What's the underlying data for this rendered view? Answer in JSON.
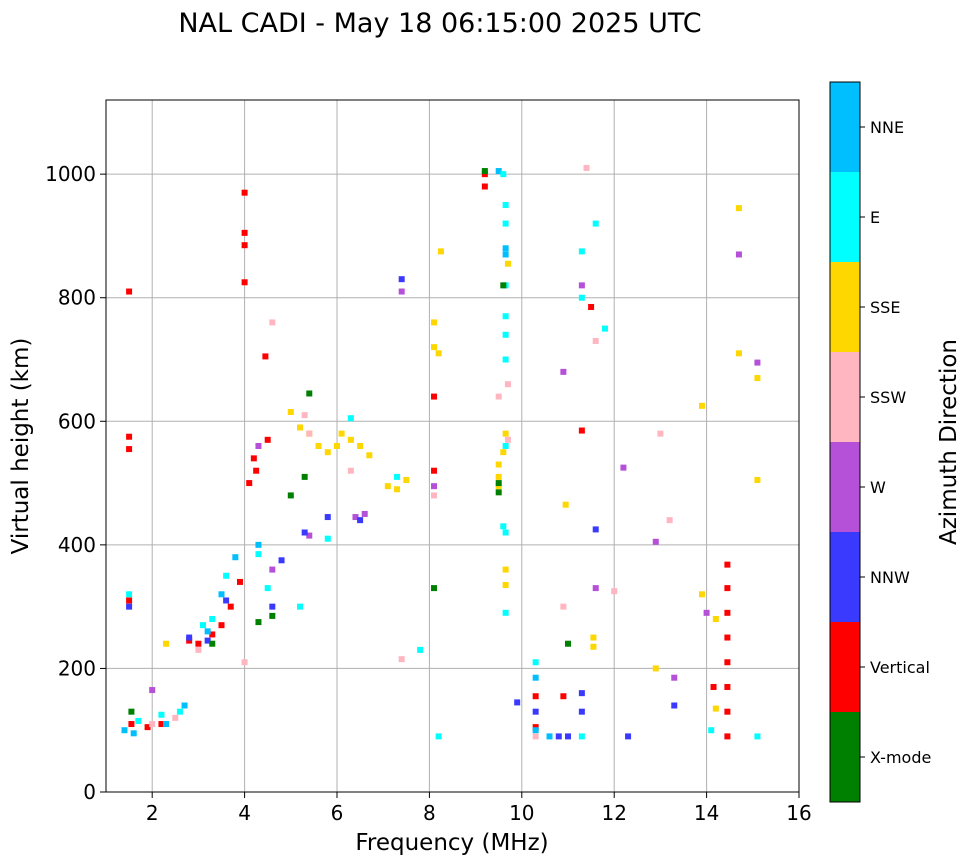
{
  "chart_data": {
    "type": "scatter",
    "title": "NAL CADI - May 18 06:15:00 2025 UTC",
    "xlabel": "Frequency (MHz)",
    "ylabel": "Virtual height (km)",
    "xlim": [
      1,
      16
    ],
    "ylim": [
      0,
      1120
    ],
    "xticks": [
      2,
      4,
      6,
      8,
      10,
      12,
      14,
      16
    ],
    "yticks": [
      0,
      200,
      400,
      600,
      800,
      1000
    ],
    "grid": true,
    "colorbar": {
      "label": "Azimuth Direction",
      "categories": [
        {
          "name": "X-mode",
          "color": "#008000"
        },
        {
          "name": "Vertical",
          "color": "#ff0000"
        },
        {
          "name": "NNW",
          "color": "#3a3aff"
        },
        {
          "name": "W",
          "color": "#b550d8"
        },
        {
          "name": "SSW",
          "color": "#ffb6c1"
        },
        {
          "name": "SSE",
          "color": "#ffd700"
        },
        {
          "name": "E",
          "color": "#00ffff"
        },
        {
          "name": "NNE",
          "color": "#00bfff"
        }
      ]
    },
    "series": [
      {
        "name": "Vertical",
        "points": [
          [
            1.5,
            810
          ],
          [
            1.5,
            575
          ],
          [
            1.5,
            555
          ],
          [
            1.5,
            310
          ],
          [
            1.55,
            110
          ],
          [
            1.9,
            105
          ],
          [
            2.2,
            110
          ],
          [
            2.8,
            245
          ],
          [
            3.0,
            240
          ],
          [
            3.3,
            255
          ],
          [
            3.5,
            270
          ],
          [
            3.7,
            300
          ],
          [
            3.9,
            340
          ],
          [
            4.0,
            970
          ],
          [
            4.0,
            905
          ],
          [
            4.0,
            885
          ],
          [
            4.0,
            825
          ],
          [
            4.1,
            500
          ],
          [
            4.2,
            540
          ],
          [
            4.25,
            520
          ],
          [
            4.45,
            705
          ],
          [
            4.5,
            570
          ],
          [
            8.1,
            640
          ],
          [
            8.1,
            520
          ],
          [
            9.2,
            1000
          ],
          [
            9.2,
            980
          ],
          [
            10.3,
            155
          ],
          [
            10.3,
            105
          ],
          [
            10.9,
            155
          ],
          [
            11.3,
            585
          ],
          [
            11.5,
            785
          ],
          [
            14.15,
            170
          ],
          [
            14.45,
            90
          ],
          [
            14.45,
            130
          ],
          [
            14.45,
            170
          ],
          [
            14.45,
            210
          ],
          [
            14.45,
            250
          ],
          [
            14.45,
            290
          ],
          [
            14.45,
            330
          ],
          [
            14.45,
            368
          ]
        ]
      },
      {
        "name": "NNE",
        "points": [
          [
            1.4,
            100
          ],
          [
            1.6,
            95
          ],
          [
            2.3,
            110
          ],
          [
            2.7,
            140
          ],
          [
            3.2,
            260
          ],
          [
            3.5,
            320
          ],
          [
            3.8,
            380
          ],
          [
            4.3,
            400
          ],
          [
            9.5,
            1005
          ],
          [
            9.65,
            880
          ],
          [
            9.65,
            870
          ],
          [
            10.3,
            185
          ],
          [
            10.3,
            100
          ],
          [
            10.6,
            90
          ]
        ]
      },
      {
        "name": "E",
        "points": [
          [
            1.5,
            320
          ],
          [
            1.7,
            115
          ],
          [
            2.2,
            125
          ],
          [
            2.6,
            130
          ],
          [
            3.1,
            270
          ],
          [
            3.3,
            280
          ],
          [
            3.6,
            350
          ],
          [
            4.3,
            385
          ],
          [
            4.5,
            330
          ],
          [
            5.2,
            300
          ],
          [
            5.8,
            410
          ],
          [
            6.3,
            605
          ],
          [
            7.3,
            510
          ],
          [
            7.8,
            230
          ],
          [
            8.2,
            90
          ],
          [
            9.6,
            1000
          ],
          [
            9.65,
            950
          ],
          [
            9.65,
            920
          ],
          [
            9.65,
            820
          ],
          [
            9.65,
            770
          ],
          [
            9.65,
            740
          ],
          [
            9.65,
            700
          ],
          [
            9.65,
            560
          ],
          [
            9.6,
            430
          ],
          [
            9.65,
            420
          ],
          [
            9.65,
            290
          ],
          [
            10.3,
            210
          ],
          [
            11.3,
            875
          ],
          [
            11.3,
            800
          ],
          [
            11.3,
            90
          ],
          [
            11.6,
            920
          ],
          [
            11.8,
            750
          ],
          [
            14.1,
            100
          ],
          [
            15.1,
            90
          ]
        ]
      },
      {
        "name": "SSE",
        "points": [
          [
            2.3,
            240
          ],
          [
            5.0,
            615
          ],
          [
            5.2,
            590
          ],
          [
            5.4,
            580
          ],
          [
            5.6,
            560
          ],
          [
            5.8,
            550
          ],
          [
            6.0,
            560
          ],
          [
            6.1,
            580
          ],
          [
            6.3,
            570
          ],
          [
            6.5,
            560
          ],
          [
            6.7,
            545
          ],
          [
            7.1,
            495
          ],
          [
            7.3,
            490
          ],
          [
            7.5,
            505
          ],
          [
            8.1,
            760
          ],
          [
            8.1,
            720
          ],
          [
            8.2,
            710
          ],
          [
            8.25,
            875
          ],
          [
            9.5,
            530
          ],
          [
            9.5,
            510
          ],
          [
            9.5,
            495
          ],
          [
            9.6,
            550
          ],
          [
            9.65,
            580
          ],
          [
            9.65,
            360
          ],
          [
            9.65,
            335
          ],
          [
            9.7,
            855
          ],
          [
            10.95,
            465
          ],
          [
            11.55,
            250
          ],
          [
            11.55,
            235
          ],
          [
            12.9,
            200
          ],
          [
            13.9,
            625
          ],
          [
            13.9,
            320
          ],
          [
            14.2,
            280
          ],
          [
            14.2,
            135
          ],
          [
            14.7,
            945
          ],
          [
            14.7,
            710
          ],
          [
            15.1,
            670
          ],
          [
            15.1,
            505
          ]
        ]
      },
      {
        "name": "SSW",
        "points": [
          [
            2.0,
            110
          ],
          [
            2.5,
            120
          ],
          [
            3.0,
            230
          ],
          [
            4.0,
            210
          ],
          [
            4.6,
            760
          ],
          [
            5.3,
            610
          ],
          [
            5.4,
            580
          ],
          [
            6.3,
            520
          ],
          [
            7.4,
            215
          ],
          [
            8.1,
            480
          ],
          [
            9.5,
            640
          ],
          [
            9.7,
            660
          ],
          [
            9.7,
            570
          ],
          [
            10.3,
            90
          ],
          [
            10.9,
            300
          ],
          [
            11.6,
            730
          ],
          [
            12.0,
            325
          ],
          [
            13.0,
            580
          ],
          [
            13.2,
            440
          ],
          [
            11.4,
            1010
          ]
        ]
      },
      {
        "name": "W",
        "points": [
          [
            2.0,
            165
          ],
          [
            4.3,
            560
          ],
          [
            4.6,
            360
          ],
          [
            5.4,
            415
          ],
          [
            6.4,
            445
          ],
          [
            6.6,
            450
          ],
          [
            7.4,
            810
          ],
          [
            8.1,
            495
          ],
          [
            10.9,
            680
          ],
          [
            11.3,
            820
          ],
          [
            11.6,
            330
          ],
          [
            12.2,
            525
          ],
          [
            12.9,
            405
          ],
          [
            13.3,
            185
          ],
          [
            14.0,
            290
          ],
          [
            14.7,
            870
          ],
          [
            15.1,
            695
          ]
        ]
      },
      {
        "name": "NNW",
        "points": [
          [
            1.5,
            300
          ],
          [
            2.8,
            250
          ],
          [
            3.2,
            245
          ],
          [
            3.6,
            310
          ],
          [
            4.6,
            300
          ],
          [
            4.8,
            375
          ],
          [
            5.3,
            420
          ],
          [
            5.8,
            445
          ],
          [
            6.5,
            440
          ],
          [
            7.4,
            830
          ],
          [
            9.9,
            145
          ],
          [
            10.3,
            130
          ],
          [
            10.8,
            90
          ],
          [
            11.0,
            90
          ],
          [
            11.3,
            130
          ],
          [
            11.3,
            160
          ],
          [
            11.6,
            425
          ],
          [
            12.3,
            90
          ],
          [
            13.3,
            140
          ]
        ]
      },
      {
        "name": "X-mode",
        "points": [
          [
            1.55,
            130
          ],
          [
            3.3,
            240
          ],
          [
            4.3,
            275
          ],
          [
            4.6,
            285
          ],
          [
            5.0,
            480
          ],
          [
            5.3,
            510
          ],
          [
            5.4,
            645
          ],
          [
            8.1,
            330
          ],
          [
            9.2,
            1005
          ],
          [
            9.5,
            500
          ],
          [
            9.5,
            485
          ],
          [
            9.6,
            820
          ],
          [
            11.0,
            240
          ]
        ]
      }
    ]
  }
}
